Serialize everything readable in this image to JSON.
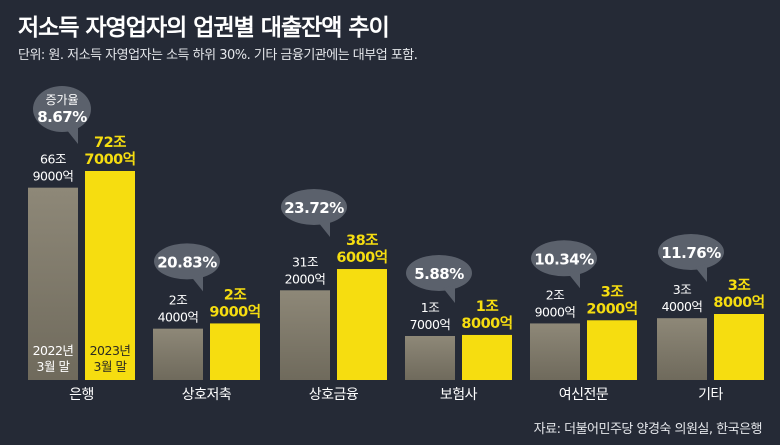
{
  "title": "저소득 자영업자의 업권별 대출잔액 추이",
  "subtitle": "단위: 원. 저소득 자영업자는 소득 하위 30%. 기타 금융기관에는 대부업 포함.",
  "source": "자료: 더불어민주당 양경숙 의원실, 한국은행",
  "colors": {
    "background": "#252a36",
    "bar_2022_top": "#8e8878",
    "bar_2022_bottom": "#6f6a5c",
    "bar_2023": "#f6dd10",
    "bubble": "#5b616c",
    "bubble_text": "#ffffff",
    "label_2023": "#f6dd10",
    "label_2022": "#ffffff"
  },
  "chart_data": {
    "type": "bar",
    "categories": [
      "은행",
      "상호저축",
      "상호금융",
      "보험사",
      "여신전문",
      "기타"
    ],
    "series": [
      {
        "name": "2022년 3월 말",
        "values": [
          669000,
          24000,
          312000,
          17000,
          29000,
          34000
        ]
      },
      {
        "name": "2023년 3월 말",
        "values": [
          727000,
          29000,
          386000,
          18000,
          32000,
          38000
        ]
      }
    ],
    "value_labels": [
      [
        "66조",
        "9000억"
      ],
      [
        "2조",
        "4000억"
      ],
      [
        "31조",
        "2000억"
      ],
      [
        "1조",
        "7000억"
      ],
      [
        "2조",
        "9000억"
      ],
      [
        "3조",
        "4000억"
      ]
    ],
    "value_labels_2023": [
      [
        "72조",
        "7000억"
      ],
      [
        "2조",
        "9000억"
      ],
      [
        "38조",
        "6000억"
      ],
      [
        "1조",
        "8000억"
      ],
      [
        "3조",
        "2000억"
      ],
      [
        "3조",
        "8000억"
      ]
    ],
    "increase_rate": [
      "8.67%",
      "20.83%",
      "23.72%",
      "5.88%",
      "10.34%",
      "11.76%"
    ],
    "increase_label": "증가율",
    "series_labels": [
      [
        "2022년",
        "3월 말"
      ],
      [
        "2023년",
        "3월 말"
      ]
    ],
    "units": "억 원"
  }
}
